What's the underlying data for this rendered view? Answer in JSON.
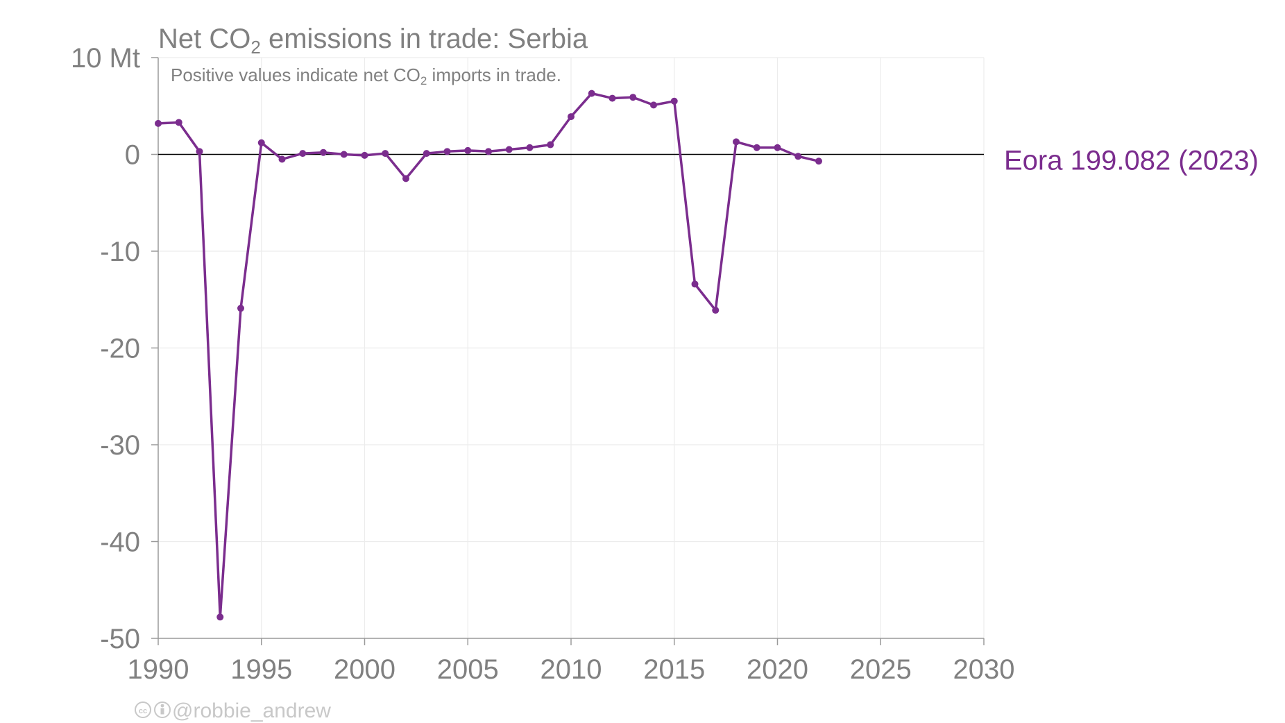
{
  "chart_data": {
    "type": "line",
    "title_pre": "Net CO",
    "title_sub": "2",
    "title_post": " emissions in trade: Serbia",
    "subtitle_pre": "Positive values indicate net CO",
    "subtitle_sub": "2",
    "subtitle_post": " imports in trade.",
    "y_unit": "Mt",
    "xlim": [
      1990,
      2030
    ],
    "ylim": [
      -50,
      10
    ],
    "x_ticks": [
      1990,
      1995,
      2000,
      2005,
      2010,
      2015,
      2020,
      2025,
      2030
    ],
    "y_ticks": [
      10,
      0,
      -10,
      -20,
      -30,
      -40,
      -50
    ],
    "y_tick_labels": [
      "10 Mt",
      "0",
      "-10",
      "-20",
      "-30",
      "-40",
      "-50"
    ],
    "grid": true,
    "series": [
      {
        "name": "Eora",
        "label": "Eora 199.082 (2023)",
        "color": "#7b2d8e",
        "x": [
          1990,
          1991,
          1992,
          1993,
          1994,
          1995,
          1996,
          1997,
          1998,
          1999,
          2000,
          2001,
          2002,
          2003,
          2004,
          2005,
          2006,
          2007,
          2008,
          2009,
          2010,
          2011,
          2012,
          2013,
          2014,
          2015,
          2016,
          2017,
          2018,
          2019,
          2020,
          2021,
          2022
        ],
        "y": [
          3.2,
          3.3,
          0.3,
          -47.8,
          -15.9,
          1.2,
          -0.5,
          0.1,
          0.2,
          0.0,
          -0.1,
          0.1,
          -2.5,
          0.1,
          0.3,
          0.4,
          0.3,
          0.5,
          0.7,
          1.0,
          3.9,
          6.3,
          5.8,
          5.9,
          5.1,
          5.5,
          -13.4,
          -16.1,
          1.3,
          0.7,
          0.7,
          -0.2,
          -0.7
        ]
      }
    ]
  },
  "credit": {
    "icons": [
      "cc-icon",
      "attribution-icon"
    ],
    "handle": "@robbie_andrew"
  }
}
